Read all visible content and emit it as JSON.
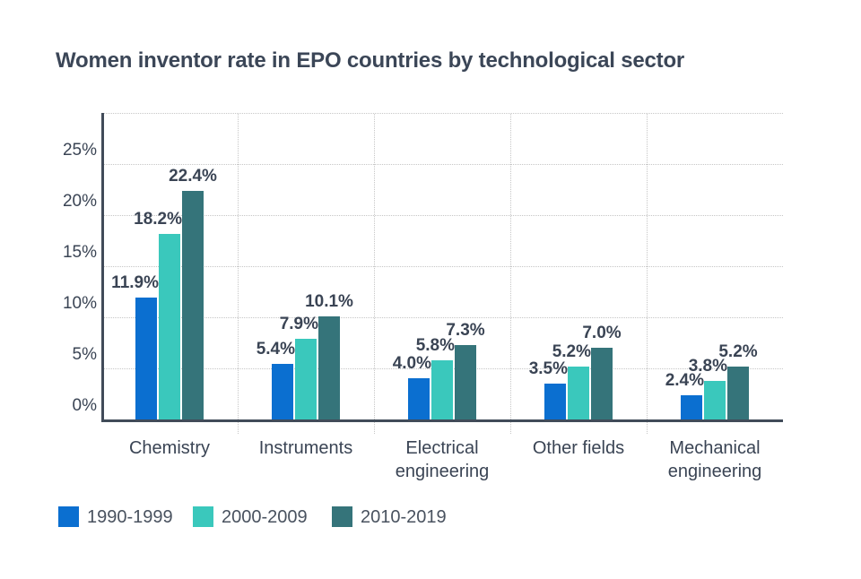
{
  "title": "Women inventor rate in EPO countries by technological sector",
  "chart_data": {
    "type": "bar",
    "title": "Women inventor rate in EPO countries by technological sector",
    "categories": [
      "Chemistry",
      "Instruments",
      "Electrical engineering",
      "Other fields",
      "Mechanical engineering"
    ],
    "series": [
      {
        "name": "1990-1999",
        "color": "#0b6fd0",
        "values": [
          11.9,
          5.4,
          4.0,
          3.5,
          2.4
        ]
      },
      {
        "name": "2000-2009",
        "color": "#3ac8bc",
        "values": [
          18.2,
          7.9,
          5.8,
          5.2,
          3.8
        ]
      },
      {
        "name": "2010-2019",
        "color": "#35747a",
        "values": [
          22.4,
          10.1,
          7.3,
          7.0,
          5.2
        ]
      }
    ],
    "value_label_format": "{value}%",
    "y_ticks": [
      "0%",
      "5%",
      "10%",
      "15%",
      "20%",
      "25%"
    ],
    "ylim": [
      0,
      30
    ],
    "gridline_step_pct": 5,
    "grid": true,
    "legend_position": "bottom",
    "axis_color": "#414b59",
    "grid_color": "#c6c6c6",
    "label_color": "#3a4454"
  }
}
